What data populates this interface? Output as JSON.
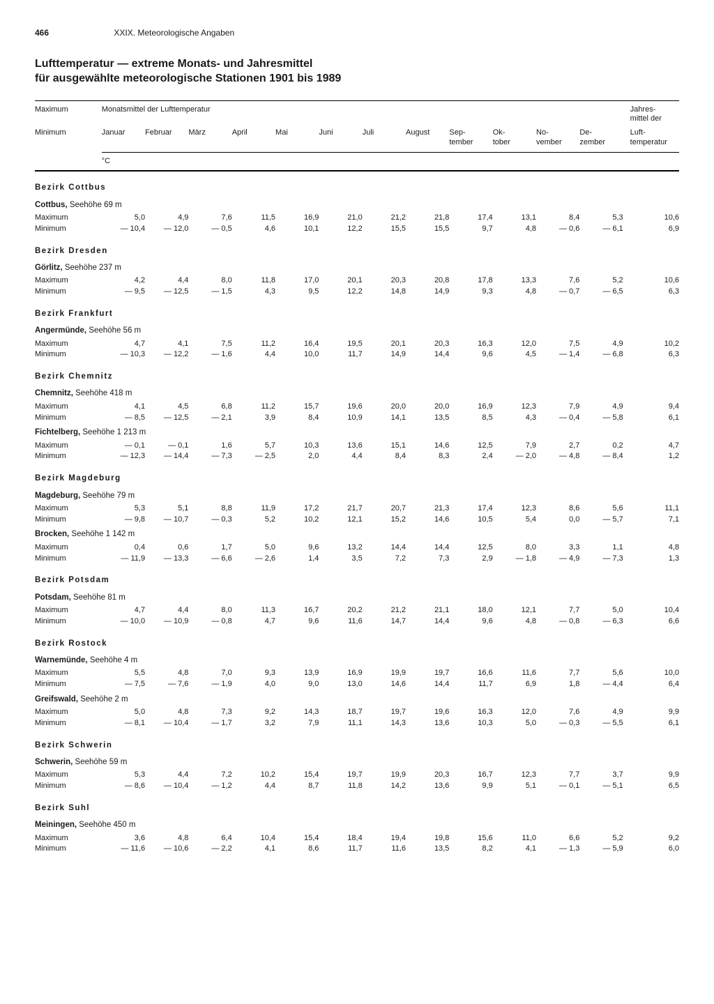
{
  "page_number": "466",
  "chapter": "XXIX. Meteorologische Angaben",
  "title_line1": "Lufttemperatur — extreme Monats- und Jahresmittel",
  "title_line2": "für ausgewählte meteorologische Stationen 1901 bis 1989",
  "header": {
    "left_top": "Maximum",
    "left_bottom": "Minimum",
    "span_label": "Monatsmittel der Lufttemperatur",
    "year_top": "Jahres-",
    "year_mid": "mittel der",
    "year_bot1": "Luft-",
    "year_bot2": "temperatur",
    "months": [
      "Januar",
      "Februar",
      "März",
      "April",
      "Mai",
      "Juni",
      "Juli",
      "August",
      "Sep-\ntember",
      "Ok-\ntober",
      "No-\nvember",
      "De-\nzember"
    ],
    "unit": "°C"
  },
  "row_labels": {
    "max": "Maximum",
    "min": "Minimum"
  },
  "sections": [
    {
      "name": "Bezirk Cottbus",
      "stations": [
        {
          "name": "Cottbus,",
          "alt": "Seehöhe 69 m",
          "max": [
            "5,0",
            "4,9",
            "7,6",
            "11,5",
            "16,9",
            "21,0",
            "21,2",
            "21,8",
            "17,4",
            "13,1",
            "8,4",
            "5,3",
            "10,6"
          ],
          "min": [
            "— 10,4",
            "— 12,0",
            "— 0,5",
            "4,6",
            "10,1",
            "12,2",
            "15,5",
            "15,5",
            "9,7",
            "4,8",
            "— 0,6",
            "— 6,1",
            "6,9"
          ]
        }
      ]
    },
    {
      "name": "Bezirk Dresden",
      "stations": [
        {
          "name": "Görlitz,",
          "alt": "Seehöhe 237 m",
          "max": [
            "4,2",
            "4,4",
            "8,0",
            "11,8",
            "17,0",
            "20,1",
            "20,3",
            "20,8",
            "17,8",
            "13,3",
            "7,6",
            "5,2",
            "10,6"
          ],
          "min": [
            "— 9,5",
            "— 12,5",
            "— 1,5",
            "4,3",
            "9,5",
            "12,2",
            "14,8",
            "14,9",
            "9,3",
            "4,8",
            "— 0,7",
            "— 6,5",
            "6,3"
          ]
        }
      ]
    },
    {
      "name": "Bezirk Frankfurt",
      "stations": [
        {
          "name": "Angermünde,",
          "alt": "Seehöhe 56 m",
          "max": [
            "4,7",
            "4,1",
            "7,5",
            "11,2",
            "16,4",
            "19,5",
            "20,1",
            "20,3",
            "16,3",
            "12,0",
            "7,5",
            "4,9",
            "10,2"
          ],
          "min": [
            "— 10,3",
            "— 12,2",
            "— 1,6",
            "4,4",
            "10,0",
            "11,7",
            "14,9",
            "14,4",
            "9,6",
            "4,5",
            "— 1,4",
            "— 6,8",
            "6,3"
          ]
        }
      ]
    },
    {
      "name": "Bezirk Chemnitz",
      "stations": [
        {
          "name": "Chemnitz,",
          "alt": "Seehöhe 418 m",
          "max": [
            "4,1",
            "4,5",
            "6,8",
            "11,2",
            "15,7",
            "19,6",
            "20,0",
            "20,0",
            "16,9",
            "12,3",
            "7,9",
            "4,9",
            "9,4"
          ],
          "min": [
            "— 8,5",
            "— 12,5",
            "— 2,1",
            "3,9",
            "8,4",
            "10,9",
            "14,1",
            "13,5",
            "8,5",
            "4,3",
            "— 0,4",
            "— 5,8",
            "6,1"
          ]
        },
        {
          "name": "Fichtelberg,",
          "alt": "Seehöhe 1 213 m",
          "max": [
            "— 0,1",
            "— 0,1",
            "1,6",
            "5,7",
            "10,3",
            "13,6",
            "15,1",
            "14,6",
            "12,5",
            "7,9",
            "2,7",
            "0,2",
            "4,7"
          ],
          "min": [
            "— 12,3",
            "— 14,4",
            "— 7,3",
            "— 2,5",
            "2,0",
            "4,4",
            "8,4",
            "8,3",
            "2,4",
            "— 2,0",
            "— 4,8",
            "— 8,4",
            "1,2"
          ]
        }
      ]
    },
    {
      "name": "Bezirk Magdeburg",
      "stations": [
        {
          "name": "Magdeburg,",
          "alt": "Seehöhe 79 m",
          "max": [
            "5,3",
            "5,1",
            "8,8",
            "11,9",
            "17,2",
            "21,7",
            "20,7",
            "21,3",
            "17,4",
            "12,3",
            "8,6",
            "5,6",
            "11,1"
          ],
          "min": [
            "— 9,8",
            "— 10,7",
            "— 0,3",
            "5,2",
            "10,2",
            "12,1",
            "15,2",
            "14,6",
            "10,5",
            "5,4",
            "0,0",
            "— 5,7",
            "7,1"
          ]
        },
        {
          "name": "Brocken,",
          "alt": "Seehöhe 1 142 m",
          "max": [
            "0,4",
            "0,6",
            "1,7",
            "5,0",
            "9,6",
            "13,2",
            "14,4",
            "14,4",
            "12,5",
            "8,0",
            "3,3",
            "1,1",
            "4,8"
          ],
          "min": [
            "— 11,9",
            "— 13,3",
            "— 6,6",
            "— 2,6",
            "1,4",
            "3,5",
            "7,2",
            "7,3",
            "2,9",
            "— 1,8",
            "— 4,9",
            "— 7,3",
            "1,3"
          ]
        }
      ]
    },
    {
      "name": "Bezirk Potsdam",
      "stations": [
        {
          "name": "Potsdam,",
          "alt": "Seehöhe 81 m",
          "max": [
            "4,7",
            "4,4",
            "8,0",
            "11,3",
            "16,7",
            "20,2",
            "21,2",
            "21,1",
            "18,0",
            "12,1",
            "7,7",
            "5,0",
            "10,4"
          ],
          "min": [
            "— 10,0",
            "— 10,9",
            "— 0,8",
            "4,7",
            "9,6",
            "11,6",
            "14,7",
            "14,4",
            "9,6",
            "4,8",
            "— 0,8",
            "— 6,3",
            "6,6"
          ]
        }
      ]
    },
    {
      "name": "Bezirk Rostock",
      "stations": [
        {
          "name": "Warnemünde,",
          "alt": "Seehöhe 4 m",
          "max": [
            "5,5",
            "4,8",
            "7,0",
            "9,3",
            "13,9",
            "16,9",
            "19,9",
            "19,7",
            "16,6",
            "11,6",
            "7,7",
            "5,6",
            "10,0"
          ],
          "min": [
            "— 7,5",
            "— 7,6",
            "— 1,9",
            "4,0",
            "9,0",
            "13,0",
            "14,6",
            "14,4",
            "11,7",
            "6,9",
            "1,8",
            "— 4,4",
            "6,4"
          ]
        },
        {
          "name": "Greifswald,",
          "alt": "Seehöhe 2 m",
          "max": [
            "5,0",
            "4,8",
            "7,3",
            "9,2",
            "14,3",
            "18,7",
            "19,7",
            "19,6",
            "16,3",
            "12,0",
            "7,6",
            "4,9",
            "9,9"
          ],
          "min": [
            "— 8,1",
            "— 10,4",
            "— 1,7",
            "3,2",
            "7,9",
            "11,1",
            "14,3",
            "13,6",
            "10,3",
            "5,0",
            "— 0,3",
            "— 5,5",
            "6,1"
          ]
        }
      ]
    },
    {
      "name": "Bezirk Schwerin",
      "stations": [
        {
          "name": "Schwerin,",
          "alt": "Seehöhe 59 m",
          "max": [
            "5,3",
            "4,4",
            "7,2",
            "10,2",
            "15,4",
            "19,7",
            "19,9",
            "20,3",
            "16,7",
            "12,3",
            "7,7",
            "3,7",
            "9,9"
          ],
          "min": [
            "— 8,6",
            "— 10,4",
            "— 1,2",
            "4,4",
            "8,7",
            "11,8",
            "14,2",
            "13,6",
            "9,9",
            "5,1",
            "— 0,1",
            "— 5,1",
            "6,5"
          ]
        }
      ]
    },
    {
      "name": "Bezirk Suhl",
      "stations": [
        {
          "name": "Meiningen,",
          "alt": "Seehöhe 450 m",
          "max": [
            "3,6",
            "4,8",
            "6,4",
            "10,4",
            "15,4",
            "18,4",
            "19,4",
            "19,8",
            "15,6",
            "11,0",
            "6,6",
            "5,2",
            "9,2"
          ],
          "min": [
            "— 11,6",
            "— 10,6",
            "— 2,2",
            "4,1",
            "8,6",
            "11,7",
            "11,6",
            "13,5",
            "8,2",
            "4,1",
            "— 1,3",
            "— 5,9",
            "6,0"
          ]
        }
      ]
    }
  ]
}
